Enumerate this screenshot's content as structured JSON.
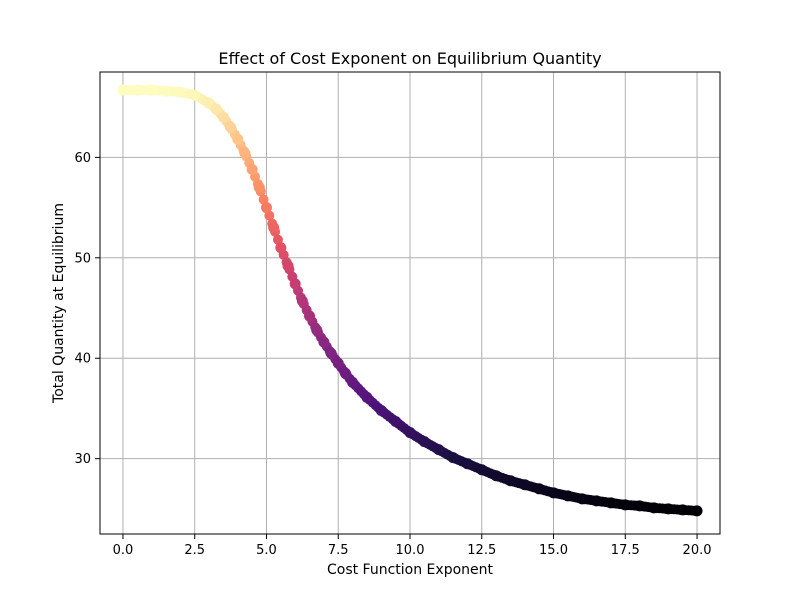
{
  "chart_data": {
    "type": "scatter",
    "title": "Effect of Cost Exponent on Equilibrium Quantity",
    "xlabel": "Cost Function Exponent",
    "ylabel": "Total Quantity at Equilibrium",
    "xlim": [
      -0.8,
      20.8
    ],
    "ylim": [
      22.5,
      68.5
    ],
    "xticks": [
      0.0,
      2.5,
      5.0,
      7.5,
      10.0,
      12.5,
      15.0,
      17.5,
      20.0
    ],
    "xtick_labels": [
      "0.0",
      "2.5",
      "5.0",
      "7.5",
      "10.0",
      "12.5",
      "15.0",
      "17.5",
      "20.0"
    ],
    "yticks": [
      30,
      40,
      50,
      60
    ],
    "ytick_labels": [
      "30",
      "40",
      "50",
      "60"
    ],
    "grid": true,
    "colormap": "magma",
    "marker_color_range": [
      "#fcfdbf",
      "#000004"
    ],
    "x": [
      0.0,
      0.5,
      1.0,
      1.5,
      2.0,
      2.5,
      3.0,
      3.25,
      3.5,
      3.75,
      4.0,
      4.25,
      4.5,
      4.75,
      5.0,
      5.25,
      5.5,
      5.75,
      6.0,
      6.25,
      6.5,
      6.75,
      7.0,
      7.25,
      7.5,
      7.75,
      8.0,
      8.5,
      9.0,
      9.5,
      10.0,
      10.5,
      11.0,
      11.5,
      12.0,
      12.5,
      13.0,
      13.5,
      14.0,
      14.5,
      15.0,
      15.5,
      16.0,
      16.5,
      17.0,
      17.5,
      18.0,
      18.5,
      19.0,
      19.5,
      20.0
    ],
    "y": [
      66.7,
      66.7,
      66.7,
      66.6,
      66.5,
      66.2,
      65.4,
      64.8,
      64.0,
      63.0,
      61.8,
      60.4,
      58.8,
      57.0,
      55.0,
      53.0,
      51.0,
      49.2,
      47.4,
      45.7,
      44.2,
      42.8,
      41.6,
      40.5,
      39.5,
      38.5,
      37.6,
      36.1,
      34.8,
      33.7,
      32.6,
      31.7,
      30.9,
      30.1,
      29.5,
      28.9,
      28.3,
      27.8,
      27.4,
      27.0,
      26.6,
      26.3,
      26.0,
      25.8,
      25.6,
      25.4,
      25.3,
      25.1,
      25.0,
      24.9,
      24.8
    ]
  }
}
